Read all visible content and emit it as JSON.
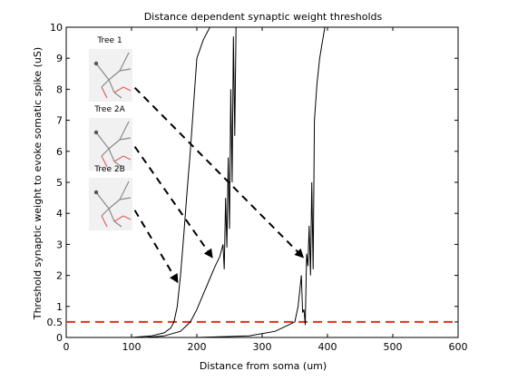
{
  "chart_data": {
    "type": "line",
    "title": "Distance dependent synaptic weight thresholds",
    "xlabel": "Distance from soma (um)",
    "ylabel": "Threshold synaptic weight to evoke somatic spike (uS)",
    "xlim": [
      0,
      600
    ],
    "ylim": [
      0,
      10
    ],
    "xticks": [
      0,
      100,
      200,
      300,
      400,
      500,
      600
    ],
    "yticks": [
      0,
      0.5,
      1,
      2,
      3,
      4,
      5,
      6,
      7,
      8,
      9,
      10
    ],
    "xtick_labels": [
      "0",
      "100",
      "200",
      "300",
      "400",
      "500",
      "600"
    ],
    "ytick_labels": [
      "0",
      "0.5",
      "1",
      "2",
      "3",
      "4",
      "5",
      "6",
      "7",
      "8",
      "9",
      "10"
    ],
    "grid": false,
    "threshold_line": {
      "y": 0.5,
      "color": "#e0301e",
      "style": "dashed"
    },
    "series": [
      {
        "color": "#000000",
        "x": [
          0,
          100,
          130,
          150,
          160,
          165,
          170,
          175,
          180,
          185,
          190,
          195,
          200,
          210,
          220,
          225
        ],
        "y": [
          0,
          0,
          0.05,
          0.15,
          0.3,
          0.5,
          1.0,
          2.0,
          3.3,
          4.7,
          6.0,
          7.5,
          9.0,
          9.6,
          10.0,
          10.0
        ]
      },
      {
        "color": "#000000",
        "x": [
          0,
          120,
          150,
          175,
          190,
          200,
          210,
          220,
          228,
          235,
          240,
          242,
          244,
          246,
          248,
          250,
          252,
          254,
          256,
          258,
          260,
          262
        ],
        "y": [
          0,
          0,
          0.05,
          0.2,
          0.5,
          0.9,
          1.4,
          1.9,
          2.3,
          2.6,
          3.0,
          2.2,
          4.5,
          2.9,
          5.8,
          3.5,
          8.0,
          5.0,
          9.7,
          6.5,
          10.0,
          10.0
        ]
      },
      {
        "color": "#000000",
        "x": [
          0,
          200,
          280,
          320,
          340,
          350,
          355,
          360,
          362,
          364,
          366,
          368,
          370,
          372,
          374,
          376,
          378,
          380,
          384,
          388,
          392,
          396,
          400
        ],
        "y": [
          0,
          0,
          0.05,
          0.2,
          0.4,
          0.5,
          1.0,
          2.0,
          0.8,
          0.9,
          0.4,
          2.7,
          2.3,
          3.6,
          2.0,
          5.0,
          2.2,
          7.0,
          8.2,
          9.0,
          9.5,
          10.0,
          10.0
        ]
      }
    ],
    "arrows": [
      {
        "from": [
          105,
          8.05
        ],
        "to": [
          362,
          2.6
        ]
      },
      {
        "from": [
          105,
          6.15
        ],
        "to": [
          223,
          2.6
        ]
      },
      {
        "from": [
          105,
          4.1
        ],
        "to": [
          170,
          1.8
        ]
      }
    ],
    "inset_labels": [
      "Tree 1",
      "Tree 2A",
      "Tree 2B"
    ]
  }
}
